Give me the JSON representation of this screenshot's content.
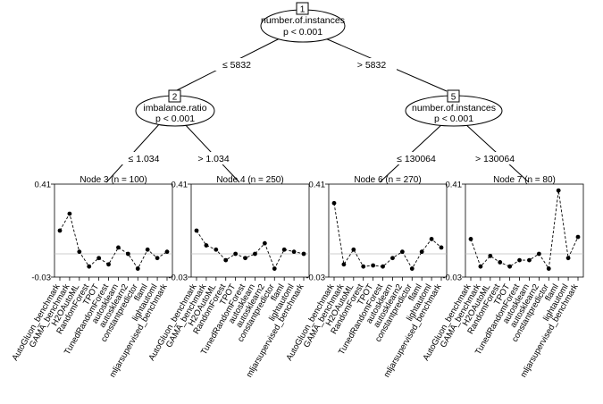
{
  "chart_data": {
    "type": "line",
    "inner_nodes": [
      {
        "id": "1",
        "variable": "number.of.instances",
        "pvalue": "p < 0.001"
      },
      {
        "id": "2",
        "variable": "imbalance.ratio",
        "pvalue": "p < 0.001"
      },
      {
        "id": "5",
        "variable": "number.of.instances",
        "pvalue": "p < 0.001"
      }
    ],
    "splits": [
      {
        "from": "1",
        "to": "2",
        "label": "≤ 5832"
      },
      {
        "from": "1",
        "to": "5",
        "label": "> 5832"
      },
      {
        "from": "2",
        "to": "3",
        "label": "≤ 1.034"
      },
      {
        "from": "2",
        "to": "4",
        "label": "> 1.034"
      },
      {
        "from": "5",
        "to": "6",
        "label": "≤ 130064"
      },
      {
        "from": "5",
        "to": "7",
        "label": "> 130064"
      }
    ],
    "categories": [
      "AutoGluon_benchmark",
      "GAMA_benchmark",
      "H2OAutoML",
      "RandomForest",
      "TPOT",
      "TunedRandomForest",
      "autosklearn",
      "autosklearn2",
      "constantpredictor",
      "flaml",
      "lightautoml",
      "mljarsupervised_benchmark"
    ],
    "ylim": [
      -0.03,
      0.41
    ],
    "ytick_labels": [
      "0.41",
      "-0.03"
    ],
    "reference_y": 0.08,
    "series": [
      {
        "name": "Node 3 (n = 100)",
        "values": [
          0.19,
          0.27,
          0.09,
          0.02,
          0.06,
          0.03,
          0.11,
          0.08,
          0.01,
          0.1,
          0.06,
          0.09
        ]
      },
      {
        "name": "Node 4 (n = 250)",
        "values": [
          0.19,
          0.12,
          0.1,
          0.05,
          0.08,
          0.06,
          0.08,
          0.13,
          0.01,
          0.1,
          0.09,
          0.08
        ]
      },
      {
        "name": "Node 6 (n = 270)",
        "values": [
          0.32,
          0.03,
          0.1,
          0.02,
          0.025,
          0.02,
          0.06,
          0.09,
          0.01,
          0.09,
          0.15,
          0.11
        ]
      },
      {
        "name": "Node 7 (n = 80)",
        "values": [
          0.15,
          0.02,
          0.07,
          0.04,
          0.02,
          0.05,
          0.05,
          0.08,
          0.01,
          0.38,
          0.06,
          0.16
        ]
      }
    ]
  }
}
